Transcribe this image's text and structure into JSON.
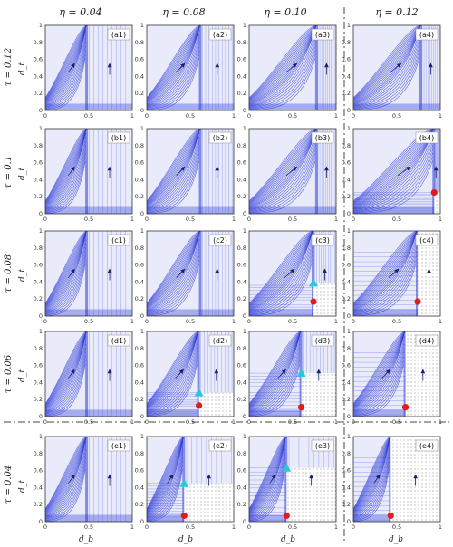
{
  "figure": {
    "columns": [
      {
        "label": "η = 0.04"
      },
      {
        "label": "η = 0.08"
      },
      {
        "label": "η = 0.10"
      },
      {
        "label": "η = 0.12"
      }
    ],
    "rows": [
      {
        "label": "τ = 0.12",
        "y_axis": "d_t"
      },
      {
        "label": "τ = 0.1",
        "y_axis": "d_t"
      },
      {
        "label": "τ = 0.08",
        "y_axis": "d_t"
      },
      {
        "label": "τ = 0.06",
        "y_axis": "d_t"
      },
      {
        "label": "τ = 0.04",
        "y_axis": "d_t"
      }
    ],
    "x_axis_label": "d_b",
    "x_ticks": [
      "0",
      "0.5",
      "1"
    ],
    "y_ticks": [
      "0",
      "0.2",
      "0.4",
      "0.6",
      "0.8",
      "1"
    ],
    "colors": {
      "field": "#2c3ad6",
      "field_light": "#e9ebfb",
      "dotted_region": "#ffffff",
      "red_point": "#e31b1b",
      "cyan_point": "#29c6dc",
      "frame": "#333333",
      "separator": "#444444"
    },
    "panels": [
      {
        "id": "a1",
        "label": "(a1)",
        "white_region": null,
        "red": null,
        "cyan": null
      },
      {
        "id": "a2",
        "label": "(a2)",
        "white_region": null,
        "red": null,
        "cyan": null
      },
      {
        "id": "a3",
        "label": "(a3)",
        "white_region": null,
        "red": null,
        "cyan": null
      },
      {
        "id": "a4",
        "label": "(a4)",
        "white_region": null,
        "red": null,
        "cyan": null
      },
      {
        "id": "b1",
        "label": "(b1)",
        "white_region": null,
        "red": null,
        "cyan": null
      },
      {
        "id": "b2",
        "label": "(b2)",
        "white_region": null,
        "red": null,
        "cyan": null
      },
      {
        "id": "b3",
        "label": "(b3)",
        "white_region": null,
        "red": null,
        "cyan": null
      },
      {
        "id": "b4",
        "label": "(b4)",
        "white_region": {
          "db": 0.93,
          "dt": 0.25
        },
        "red": [
          0.93,
          0.25
        ],
        "cyan": null
      },
      {
        "id": "c1",
        "label": "(c1)",
        "white_region": null,
        "red": null,
        "cyan": null
      },
      {
        "id": "c2",
        "label": "(c2)",
        "white_region": null,
        "red": null,
        "cyan": null
      },
      {
        "id": "c3",
        "label": "(c3)",
        "white_region": {
          "db": 0.74,
          "dt": 0.39
        },
        "red": [
          0.74,
          0.17
        ],
        "cyan": [
          0.74,
          0.39
        ]
      },
      {
        "id": "c4",
        "label": "(c4)",
        "white_region": {
          "db": 0.74,
          "dt": 0.0
        },
        "red": [
          0.74,
          0.17
        ],
        "cyan": null
      },
      {
        "id": "d1",
        "label": "(d1)",
        "white_region": null,
        "red": null,
        "cyan": null
      },
      {
        "id": "d2",
        "label": "(d2)",
        "white_region": {
          "db": 0.6,
          "dt": 0.28
        },
        "red": [
          0.6,
          0.13
        ],
        "cyan": [
          0.6,
          0.28
        ]
      },
      {
        "id": "d3",
        "label": "(d3)",
        "white_region": {
          "db": 0.6,
          "dt": 0.51
        },
        "red": [
          0.6,
          0.11
        ],
        "cyan": [
          0.6,
          0.51
        ]
      },
      {
        "id": "d4",
        "label": "(d4)",
        "white_region": {
          "db": 0.6,
          "dt": 0.0
        },
        "red": [
          0.6,
          0.11
        ],
        "cyan": null
      },
      {
        "id": "e1",
        "label": "(e1)",
        "white_region": null,
        "red": null,
        "cyan": null
      },
      {
        "id": "e2",
        "label": "(e2)",
        "white_region": {
          "db": 0.43,
          "dt": 0.45
        },
        "red": [
          0.43,
          0.07
        ],
        "cyan": [
          0.43,
          0.45
        ]
      },
      {
        "id": "e3",
        "label": "(e3)",
        "white_region": {
          "db": 0.43,
          "dt": 0.63
        },
        "red": [
          0.43,
          0.07
        ],
        "cyan": [
          0.43,
          0.63
        ]
      },
      {
        "id": "e4",
        "label": "(e4)",
        "white_region": {
          "db": 0.43,
          "dt": 0.0
        },
        "red": [
          0.43,
          0.07
        ],
        "cyan": null
      }
    ]
  }
}
